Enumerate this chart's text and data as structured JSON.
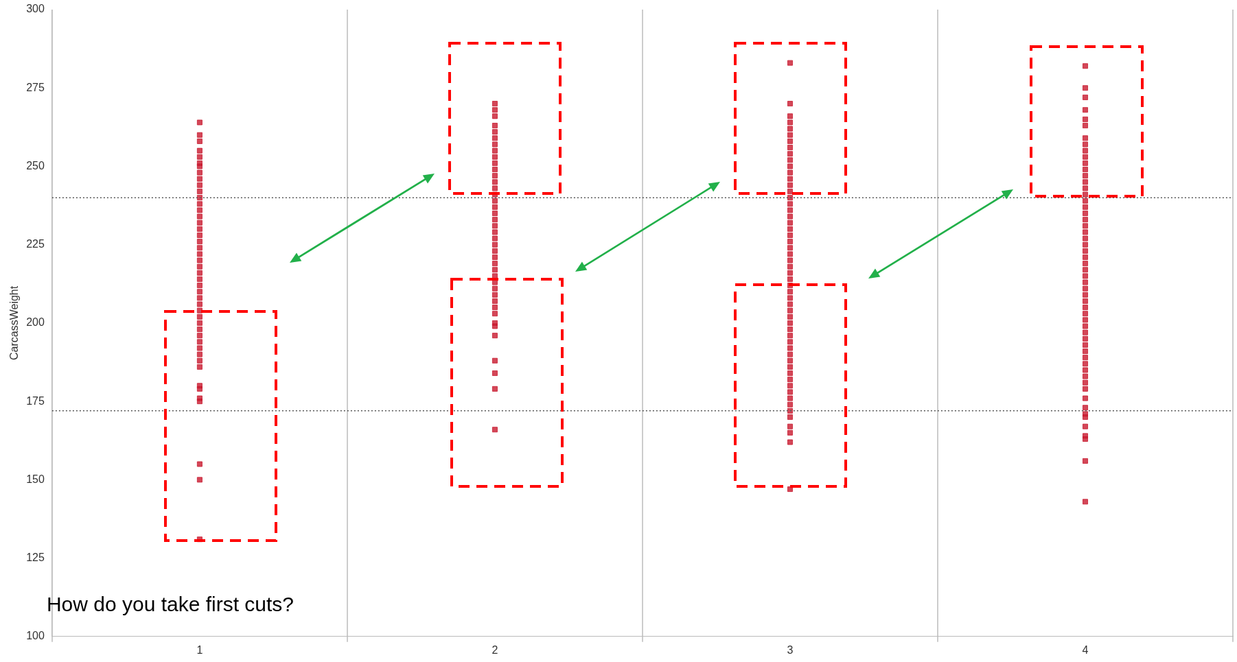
{
  "chart_data": {
    "type": "scatter",
    "ylabel": "CarcassWeight",
    "categories": [
      "1",
      "2",
      "3",
      "4"
    ],
    "ylim": [
      100,
      300
    ],
    "yticks": [
      100,
      125,
      150,
      175,
      200,
      225,
      250,
      275,
      300
    ],
    "grid": "x",
    "legend": false,
    "marker": "square",
    "ref_lines": [
      {
        "axis": "y",
        "value": 240,
        "color": "#555555",
        "line_style": "dotted"
      },
      {
        "axis": "y",
        "value": 172,
        "color": "#555555",
        "line_style": "dotted"
      }
    ],
    "annotations": [
      "How do you take first cuts?"
    ],
    "series": [
      {
        "color": "#c8192e",
        "x": [
          "1",
          "1",
          "1",
          "1",
          "1",
          "1",
          "1",
          "1",
          "1",
          "1",
          "1",
          "1",
          "1",
          "1",
          "1",
          "1",
          "1",
          "1",
          "1",
          "1",
          "1",
          "1",
          "1",
          "1",
          "1",
          "1",
          "1",
          "1",
          "1",
          "1",
          "1",
          "1",
          "1",
          "1",
          "1",
          "1",
          "1",
          "1",
          "1",
          "1",
          "1",
          "1",
          "1",
          "1",
          "1",
          "1"
        ],
        "values": [
          264,
          260,
          258,
          255,
          253,
          251,
          250,
          248,
          246,
          244,
          242,
          240,
          238,
          236,
          234,
          232,
          230,
          228,
          226,
          224,
          222,
          220,
          218,
          216,
          214,
          212,
          210,
          208,
          206,
          204,
          202,
          200,
          198,
          196,
          194,
          192,
          190,
          188,
          186,
          180,
          179,
          176,
          175,
          155,
          150,
          131
        ]
      },
      {
        "color": "#c8192e",
        "x": [
          "2",
          "2",
          "2",
          "2",
          "2",
          "2",
          "2",
          "2",
          "2",
          "2",
          "2",
          "2",
          "2",
          "2",
          "2",
          "2",
          "2",
          "2",
          "2",
          "2",
          "2",
          "2",
          "2",
          "2",
          "2",
          "2",
          "2",
          "2",
          "2",
          "2",
          "2",
          "2",
          "2",
          "2",
          "2",
          "2",
          "2",
          "2",
          "2",
          "2",
          "2"
        ],
        "values": [
          270,
          268,
          266,
          263,
          261,
          259,
          257,
          255,
          253,
          251,
          249,
          247,
          245,
          243,
          241,
          239,
          237,
          235,
          233,
          231,
          229,
          227,
          225,
          223,
          221,
          219,
          217,
          215,
          213,
          211,
          209,
          207,
          205,
          203,
          200,
          199,
          196,
          188,
          184,
          179,
          166
        ]
      },
      {
        "color": "#c8192e",
        "x": [
          "3",
          "3",
          "3",
          "3",
          "3",
          "3",
          "3",
          "3",
          "3",
          "3",
          "3",
          "3",
          "3",
          "3",
          "3",
          "3",
          "3",
          "3",
          "3",
          "3",
          "3",
          "3",
          "3",
          "3",
          "3",
          "3",
          "3",
          "3",
          "3",
          "3",
          "3",
          "3",
          "3",
          "3",
          "3",
          "3",
          "3",
          "3",
          "3",
          "3",
          "3",
          "3",
          "3",
          "3",
          "3",
          "3",
          "3",
          "3",
          "3",
          "3",
          "3",
          "3",
          "3",
          "3",
          "3"
        ],
        "values": [
          283,
          270,
          266,
          264,
          262,
          260,
          258,
          256,
          254,
          252,
          250,
          248,
          246,
          244,
          242,
          240,
          238,
          236,
          234,
          232,
          230,
          228,
          226,
          224,
          222,
          220,
          218,
          216,
          214,
          212,
          210,
          208,
          206,
          204,
          202,
          200,
          198,
          196,
          194,
          192,
          190,
          188,
          186,
          184,
          182,
          180,
          178,
          176,
          174,
          172,
          170,
          167,
          165,
          162,
          147
        ]
      },
      {
        "color": "#c8192e",
        "x": [
          "4",
          "4",
          "4",
          "4",
          "4",
          "4",
          "4",
          "4",
          "4",
          "4",
          "4",
          "4",
          "4",
          "4",
          "4",
          "4",
          "4",
          "4",
          "4",
          "4",
          "4",
          "4",
          "4",
          "4",
          "4",
          "4",
          "4",
          "4",
          "4",
          "4",
          "4",
          "4",
          "4",
          "4",
          "4",
          "4",
          "4",
          "4",
          "4",
          "4",
          "4",
          "4",
          "4",
          "4",
          "4",
          "4",
          "4",
          "4",
          "4",
          "4",
          "4",
          "4",
          "4",
          "4",
          "4",
          "4"
        ],
        "values": [
          282,
          275,
          272,
          268,
          265,
          263,
          259,
          257,
          255,
          253,
          251,
          249,
          247,
          245,
          243,
          241,
          239,
          237,
          235,
          233,
          231,
          229,
          227,
          225,
          223,
          221,
          219,
          217,
          215,
          213,
          211,
          209,
          207,
          205,
          203,
          201,
          199,
          197,
          195,
          193,
          191,
          189,
          187,
          185,
          183,
          181,
          179,
          176,
          173,
          171,
          170,
          167,
          164,
          163,
          156,
          143
        ]
      }
    ]
  }
}
